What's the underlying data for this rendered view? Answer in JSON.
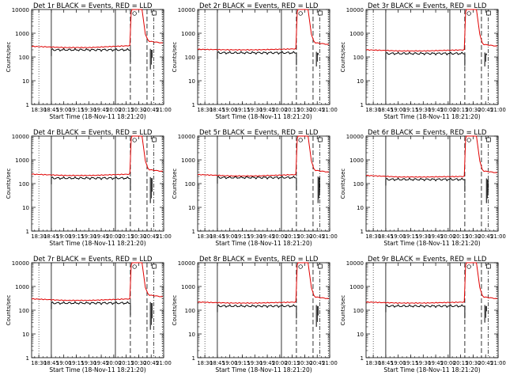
{
  "chart_data": [
    {
      "type": "line",
      "title": "Det 1r  BLACK = Events, RED = LLD",
      "xlabel": "Start Time (18-Nov-11 18:21:20)",
      "ylabel": "Counts/sec",
      "xticks": [
        "18:30",
        "18:45",
        "19:00",
        "19:15",
        "19:30",
        "19:45",
        "20:00",
        "20:15",
        "20:30",
        "20:45",
        "21:00"
      ],
      "yscale": "log",
      "ylim": [
        1,
        10000
      ],
      "yticks": [
        "1",
        "10",
        "100",
        "1000",
        "10000"
      ],
      "xlim": [
        "18:21:20",
        "21:00:00"
      ],
      "events_level": 200,
      "lld_level": 300,
      "lld_start": 280,
      "lld_plateau": 250,
      "lld_tail": 380,
      "event_spike_min": 30,
      "event_spike_time": "20:44",
      "markers": {
        "solid": [
          "18:45",
          "20:02"
        ],
        "dashed": [
          "20:20",
          "20:40"
        ],
        "dashdot": [
          "20:48"
        ]
      },
      "flags": [
        "20:25",
        "20:48"
      ],
      "series": [
        {
          "name": "BLACK = Events",
          "color": "#000000"
        },
        {
          "name": "RED = LLD",
          "color": "#e00000"
        }
      ]
    },
    {
      "type": "line",
      "title": "Det 2r  BLACK = Events, RED = LLD",
      "xlabel": "Start Time (18-Nov-11 18:21:20)",
      "ylabel": "Counts/sec",
      "xticks": [
        "18:30",
        "18:45",
        "19:00",
        "19:15",
        "19:30",
        "19:45",
        "20:00",
        "20:15",
        "20:30",
        "20:45",
        "21:00"
      ],
      "yscale": "log",
      "ylim": [
        1,
        10000
      ],
      "yticks": [
        "1",
        "10",
        "100",
        "1000",
        "10000"
      ],
      "xlim": [
        "18:21:20",
        "21:00:00"
      ],
      "events_level": 150,
      "lld_level": 220,
      "lld_start": 210,
      "lld_plateau": 200,
      "lld_tail": 330,
      "event_spike_min": 40,
      "event_spike_time": "20:44",
      "markers": {
        "solid": [
          "18:45",
          "20:02"
        ],
        "dashed": [
          "20:20",
          "20:40"
        ],
        "dashdot": [
          "20:48"
        ]
      },
      "flags": [
        "20:25",
        "20:48"
      ],
      "series": [
        {
          "name": "BLACK = Events",
          "color": "#000000"
        },
        {
          "name": "RED = LLD",
          "color": "#e00000"
        }
      ]
    },
    {
      "type": "line",
      "title": "Det 3r  BLACK = Events, RED = LLD",
      "xlabel": "Start Time (18-Nov-11 18:21:20)",
      "ylabel": "Counts/sec",
      "xticks": [
        "18:30",
        "18:45",
        "19:00",
        "19:15",
        "19:30",
        "19:45",
        "20:00",
        "20:15",
        "20:30",
        "20:45",
        "21:00"
      ],
      "yscale": "log",
      "ylim": [
        1,
        10000
      ],
      "yticks": [
        "1",
        "10",
        "100",
        "1000",
        "10000"
      ],
      "xlim": [
        "18:21:20",
        "21:00:00"
      ],
      "events_level": 140,
      "lld_level": 200,
      "lld_start": 200,
      "lld_plateau": 180,
      "lld_tail": 280,
      "event_spike_min": 40,
      "event_spike_time": "20:44",
      "markers": {
        "solid": [
          "18:45",
          "20:02"
        ],
        "dashed": [
          "20:20",
          "20:40"
        ],
        "dashdot": [
          "20:48"
        ]
      },
      "flags": [
        "20:25",
        "20:48"
      ],
      "series": [
        {
          "name": "BLACK = Events",
          "color": "#000000"
        },
        {
          "name": "RED = LLD",
          "color": "#e00000"
        }
      ]
    },
    {
      "type": "line",
      "title": "Det 4r  BLACK = Events, RED = LLD",
      "xlabel": "Start Time (18-Nov-11 18:21:20)",
      "ylabel": "Counts/sec",
      "xticks": [
        "18:30",
        "18:45",
        "19:00",
        "19:15",
        "19:30",
        "19:45",
        "20:00",
        "20:15",
        "20:30",
        "20:45",
        "21:00"
      ],
      "yscale": "log",
      "ylim": [
        1,
        10000
      ],
      "yticks": [
        "1",
        "10",
        "100",
        "1000",
        "10000"
      ],
      "xlim": [
        "18:21:20",
        "21:00:00"
      ],
      "events_level": 170,
      "lld_level": 250,
      "lld_start": 250,
      "lld_plateau": 220,
      "lld_tail": 320,
      "event_spike_min": 15,
      "event_spike_time": "20:44",
      "markers": {
        "solid": [
          "18:45",
          "20:02"
        ],
        "dashed": [
          "20:20",
          "20:40"
        ],
        "dashdot": [
          "20:48"
        ]
      },
      "flags": [
        "20:25",
        "20:48"
      ],
      "series": [
        {
          "name": "BLACK = Events",
          "color": "#000000"
        },
        {
          "name": "RED = LLD",
          "color": "#e00000"
        }
      ]
    },
    {
      "type": "line",
      "title": "Det 5r  BLACK = Events, RED = LLD",
      "xlabel": "Start Time (18-Nov-11 18:21:20)",
      "ylabel": "Counts/sec",
      "xticks": [
        "18:30",
        "18:45",
        "19:00",
        "19:15",
        "19:30",
        "19:45",
        "20:00",
        "20:15",
        "20:30",
        "20:45",
        "21:00"
      ],
      "yscale": "log",
      "ylim": [
        1,
        10000
      ],
      "yticks": [
        "1",
        "10",
        "100",
        "1000",
        "10000"
      ],
      "xlim": [
        "18:21:20",
        "21:00:00"
      ],
      "events_level": 180,
      "lld_level": 240,
      "lld_start": 240,
      "lld_plateau": 210,
      "lld_tail": 300,
      "event_spike_min": 15,
      "event_spike_time": "20:46",
      "markers": {
        "solid": [
          "18:45",
          "20:02"
        ],
        "dashed": [
          "20:20",
          "20:40"
        ],
        "dashdot": [
          "20:48"
        ]
      },
      "flags": [
        "20:25",
        "20:48"
      ],
      "series": [
        {
          "name": "BLACK = Events",
          "color": "#000000"
        },
        {
          "name": "RED = LLD",
          "color": "#e00000"
        }
      ]
    },
    {
      "type": "line",
      "title": "Det 6r  BLACK = Events, RED = LLD",
      "xlabel": "Start Time (18-Nov-11 18:21:20)",
      "ylabel": "Counts/sec",
      "xticks": [
        "18:30",
        "18:45",
        "19:00",
        "19:15",
        "19:30",
        "19:45",
        "20:00",
        "20:15",
        "20:30",
        "20:45",
        "21:00"
      ],
      "yscale": "log",
      "ylim": [
        1,
        10000
      ],
      "yticks": [
        "1",
        "10",
        "100",
        "1000",
        "10000"
      ],
      "xlim": [
        "18:21:20",
        "21:00:00"
      ],
      "events_level": 150,
      "lld_level": 200,
      "lld_start": 220,
      "lld_plateau": 190,
      "lld_tail": 280,
      "event_spike_min": 15,
      "event_spike_time": "20:46",
      "markers": {
        "solid": [
          "18:45",
          "20:02"
        ],
        "dashed": [
          "20:20",
          "20:40"
        ],
        "dashdot": [
          "20:48"
        ]
      },
      "flags": [
        "20:25",
        "20:48"
      ],
      "series": [
        {
          "name": "BLACK = Events",
          "color": "#000000"
        },
        {
          "name": "RED = LLD",
          "color": "#e00000"
        }
      ]
    },
    {
      "type": "line",
      "title": "Det 7r  BLACK = Events, RED = LLD",
      "xlabel": "Start Time (18-Nov-11 18:21:20)",
      "ylabel": "Counts/sec",
      "xticks": [
        "18:30",
        "18:45",
        "19:00",
        "19:15",
        "19:30",
        "19:45",
        "20:00",
        "20:15",
        "20:30",
        "20:45",
        "21:00"
      ],
      "yscale": "log",
      "ylim": [
        1,
        10000
      ],
      "yticks": [
        "1",
        "10",
        "100",
        "1000",
        "10000"
      ],
      "xlim": [
        "18:21:20",
        "21:00:00"
      ],
      "events_level": 200,
      "lld_level": 300,
      "lld_start": 300,
      "lld_plateau": 260,
      "lld_tail": 360,
      "event_spike_min": 15,
      "event_spike_time": "20:44",
      "markers": {
        "solid": [
          "18:45",
          "20:02"
        ],
        "dashed": [
          "20:20",
          "20:40"
        ],
        "dashdot": [
          "20:48"
        ]
      },
      "flags": [
        "20:25",
        "20:48"
      ],
      "series": [
        {
          "name": "BLACK = Events",
          "color": "#000000"
        },
        {
          "name": "RED = LLD",
          "color": "#e00000"
        }
      ]
    },
    {
      "type": "line",
      "title": "Det 8r  BLACK = Events, RED = LLD",
      "xlabel": "Start Time (18-Nov-11 18:21:20)",
      "ylabel": "Counts/sec",
      "xticks": [
        "18:30",
        "18:45",
        "19:00",
        "19:15",
        "19:30",
        "19:45",
        "20:00",
        "20:15",
        "20:30",
        "20:45",
        "21:00"
      ],
      "yscale": "log",
      "ylim": [
        1,
        10000
      ],
      "yticks": [
        "1",
        "10",
        "100",
        "1000",
        "10000"
      ],
      "xlim": [
        "18:21:20",
        "21:00:00"
      ],
      "events_level": 150,
      "lld_level": 220,
      "lld_start": 220,
      "lld_plateau": 200,
      "lld_tail": 300,
      "event_spike_min": 20,
      "event_spike_time": "20:44",
      "markers": {
        "solid": [
          "18:45",
          "20:02"
        ],
        "dashed": [
          "20:20",
          "20:40"
        ],
        "dashdot": [
          "20:48"
        ]
      },
      "flags": [
        "20:25",
        "20:48"
      ],
      "series": [
        {
          "name": "BLACK = Events",
          "color": "#000000"
        },
        {
          "name": "RED = LLD",
          "color": "#e00000"
        }
      ]
    },
    {
      "type": "line",
      "title": "Det 9r  BLACK = Events, RED = LLD",
      "xlabel": "Start Time (18-Nov-11 18:21:20)",
      "ylabel": "Counts/sec",
      "xticks": [
        "18:30",
        "18:45",
        "19:00",
        "19:15",
        "19:30",
        "19:45",
        "20:00",
        "20:15",
        "20:30",
        "20:45",
        "21:00"
      ],
      "yscale": "log",
      "ylim": [
        1,
        10000
      ],
      "yticks": [
        "1",
        "10",
        "100",
        "1000",
        "10000"
      ],
      "xlim": [
        "18:21:20",
        "21:00:00"
      ],
      "events_level": 150,
      "lld_level": 220,
      "lld_start": 220,
      "lld_plateau": 200,
      "lld_tail": 300,
      "event_spike_min": 30,
      "event_spike_time": "20:44",
      "markers": {
        "solid": [
          "18:45",
          "20:02"
        ],
        "dashed": [
          "20:20",
          "20:40"
        ],
        "dashdot": [
          "20:48"
        ]
      },
      "flags": [
        "20:25",
        "20:48"
      ],
      "series": [
        {
          "name": "BLACK = Events",
          "color": "#000000"
        },
        {
          "name": "RED = LLD",
          "color": "#e00000"
        }
      ]
    }
  ]
}
